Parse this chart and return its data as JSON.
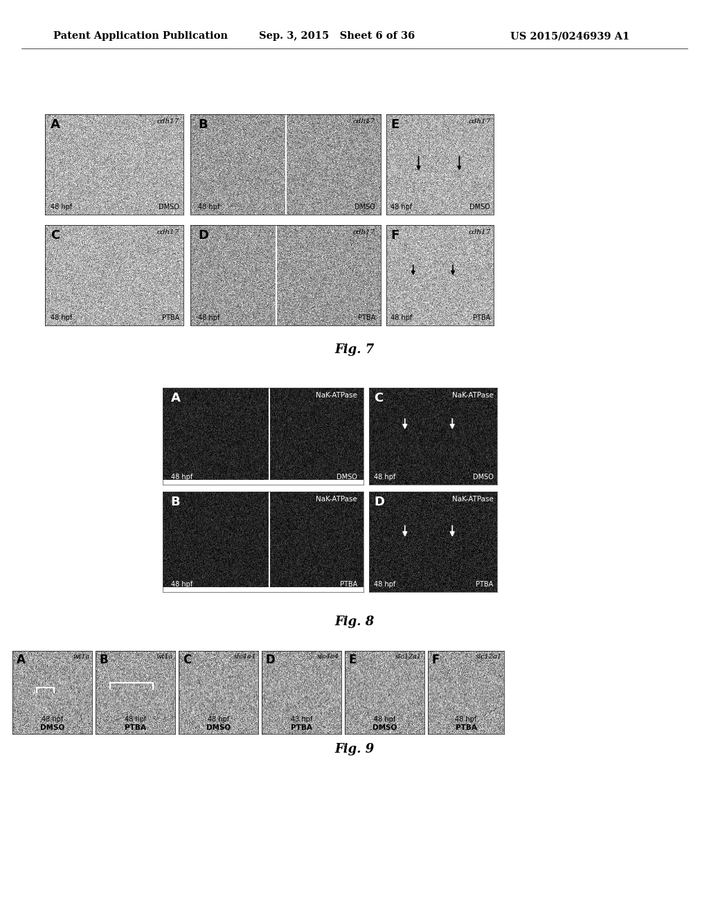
{
  "page_header_left": "Patent Application Publication",
  "page_header_center": "Sep. 3, 2015   Sheet 6 of 36",
  "page_header_right": "US 2015/0246939 A1",
  "fig7_caption": "Fig. 7",
  "fig8_caption": "Fig. 8",
  "fig9_caption": "Fig. 9",
  "background_color": "#ffffff",
  "header_fontsize": 10.5,
  "caption_fontsize": 13
}
